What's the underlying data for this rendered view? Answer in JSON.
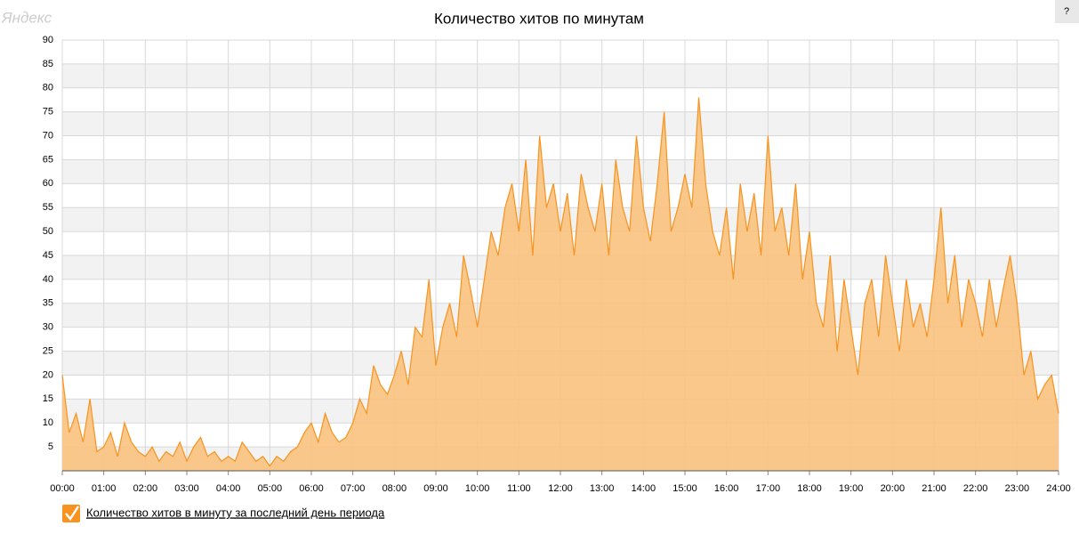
{
  "brand": "Яндекс",
  "help": "?",
  "chart_data": {
    "type": "area",
    "title": "Количество хитов по минутам",
    "x": [
      0,
      10,
      20,
      30,
      40,
      50,
      60,
      70,
      80,
      90,
      100,
      110,
      120,
      130,
      140,
      150,
      160,
      170,
      180,
      190,
      200,
      210,
      220,
      230,
      240,
      250,
      260,
      270,
      280,
      290,
      300,
      310,
      320,
      330,
      340,
      350,
      360,
      370,
      380,
      390,
      400,
      410,
      420,
      430,
      440,
      450,
      460,
      470,
      480,
      490,
      500,
      510,
      520,
      530,
      540,
      550,
      560,
      570,
      580,
      590,
      600,
      610,
      620,
      630,
      640,
      650,
      660,
      670,
      680,
      690,
      700,
      710,
      720,
      730,
      740,
      750,
      760,
      770,
      780,
      790,
      800,
      810,
      820,
      830,
      840,
      850,
      860,
      870,
      880,
      890,
      900,
      910,
      920,
      930,
      940,
      950,
      960,
      970,
      980,
      990,
      1000,
      1010,
      1020,
      1030,
      1040,
      1050,
      1060,
      1070,
      1080,
      1090,
      1100,
      1110,
      1120,
      1130,
      1140,
      1150,
      1160,
      1170,
      1180,
      1190,
      1200,
      1210,
      1220,
      1230,
      1240,
      1250,
      1260,
      1270,
      1280,
      1290,
      1300,
      1310,
      1320,
      1330,
      1340,
      1350,
      1360,
      1370,
      1380,
      1390,
      1400,
      1410,
      1420,
      1430,
      1440
    ],
    "series": [
      {
        "name": "Количество хитов в минуту за последний день периода",
        "color": "#f7931e",
        "fill": "#fbc27e",
        "values": [
          20,
          8,
          12,
          6,
          15,
          4,
          5,
          8,
          3,
          10,
          6,
          4,
          3,
          5,
          2,
          4,
          3,
          6,
          2,
          5,
          7,
          3,
          4,
          2,
          3,
          2,
          6,
          4,
          2,
          3,
          1,
          3,
          2,
          4,
          5,
          8,
          10,
          6,
          12,
          8,
          6,
          7,
          10,
          15,
          12,
          22,
          18,
          16,
          20,
          25,
          18,
          30,
          28,
          40,
          22,
          30,
          35,
          28,
          45,
          38,
          30,
          40,
          50,
          45,
          55,
          60,
          50,
          65,
          45,
          70,
          55,
          60,
          50,
          58,
          45,
          62,
          55,
          50,
          60,
          45,
          65,
          55,
          50,
          70,
          55,
          48,
          60,
          75,
          50,
          55,
          62,
          55,
          78,
          60,
          50,
          45,
          55,
          40,
          60,
          50,
          58,
          45,
          70,
          50,
          55,
          45,
          60,
          40,
          50,
          35,
          30,
          45,
          25,
          40,
          30,
          20,
          35,
          40,
          28,
          45,
          35,
          25,
          40,
          30,
          35,
          28,
          40,
          55,
          35,
          45,
          30,
          40,
          35,
          28,
          40,
          30,
          38,
          45,
          35,
          20,
          25,
          15,
          18,
          20,
          12
        ]
      }
    ],
    "xlim": [
      0,
      1440
    ],
    "xticks": [
      {
        "value": 0,
        "label": "00:00"
      },
      {
        "value": 60,
        "label": "01:00"
      },
      {
        "value": 120,
        "label": "02:00"
      },
      {
        "value": 180,
        "label": "03:00"
      },
      {
        "value": 240,
        "label": "04:00"
      },
      {
        "value": 300,
        "label": "05:00"
      },
      {
        "value": 360,
        "label": "06:00"
      },
      {
        "value": 420,
        "label": "07:00"
      },
      {
        "value": 480,
        "label": "08:00"
      },
      {
        "value": 540,
        "label": "09:00"
      },
      {
        "value": 600,
        "label": "10:00"
      },
      {
        "value": 660,
        "label": "11:00"
      },
      {
        "value": 720,
        "label": "12:00"
      },
      {
        "value": 780,
        "label": "13:00"
      },
      {
        "value": 840,
        "label": "14:00"
      },
      {
        "value": 900,
        "label": "15:00"
      },
      {
        "value": 960,
        "label": "16:00"
      },
      {
        "value": 1020,
        "label": "17:00"
      },
      {
        "value": 1080,
        "label": "18:00"
      },
      {
        "value": 1140,
        "label": "19:00"
      },
      {
        "value": 1200,
        "label": "20:00"
      },
      {
        "value": 1260,
        "label": "21:00"
      },
      {
        "value": 1320,
        "label": "22:00"
      },
      {
        "value": 1380,
        "label": "23:00"
      },
      {
        "value": 1440,
        "label": "24:00"
      }
    ],
    "ylim": [
      0,
      90
    ],
    "yticks": [
      5,
      10,
      15,
      20,
      25,
      30,
      35,
      40,
      45,
      50,
      55,
      60,
      65,
      70,
      75,
      80,
      85,
      90
    ],
    "grid": true,
    "legend": "bottom-left"
  }
}
